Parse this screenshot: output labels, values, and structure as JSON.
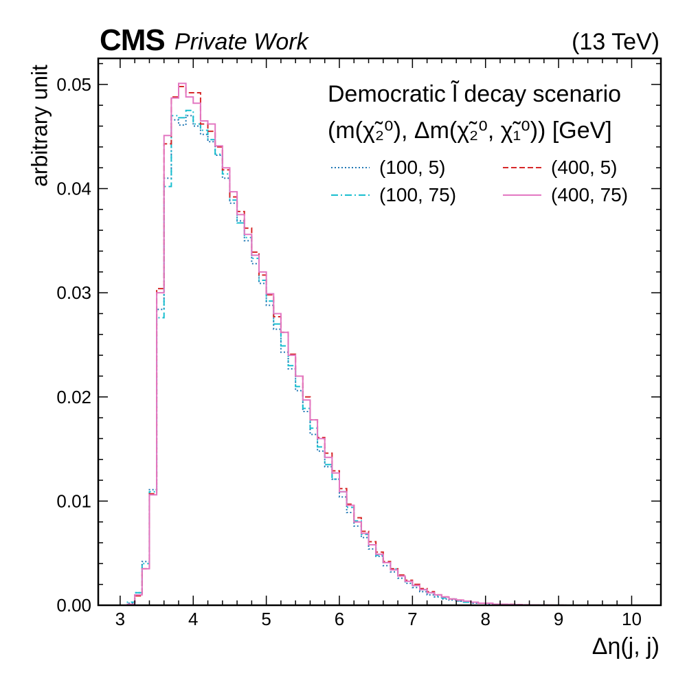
{
  "header": {
    "experiment": "CMS",
    "status": "Private Work",
    "energy": "(13 TeV)"
  },
  "legend": {
    "title_line1": "Democratic l̃ decay scenario",
    "title_line2": "(m(χ̃₂⁰), Δm(χ̃₂⁰, χ̃₁⁰)) [GeV]"
  },
  "chart_data": {
    "type": "line",
    "drawstyle": "step-histogram",
    "xlabel": "Δη(j, j)",
    "ylabel": "arbitrary unit",
    "xlim": [
      2.7,
      10.4
    ],
    "ylim": [
      0,
      0.0525
    ],
    "x_ticks": [
      "3",
      "4",
      "5",
      "6",
      "7",
      "8",
      "9",
      "10"
    ],
    "y_ticks": [
      "0.00",
      "0.01",
      "0.02",
      "0.03",
      "0.04",
      "0.05"
    ],
    "grid": false,
    "legend_placement": "top-right",
    "bin_edges": [
      3.0,
      3.1,
      3.2,
      3.3,
      3.4,
      3.5,
      3.6,
      3.7,
      3.8,
      3.9,
      4.0,
      4.1,
      4.2,
      4.3,
      4.4,
      4.5,
      4.6,
      4.7,
      4.8,
      4.9,
      5.0,
      5.1,
      5.2,
      5.3,
      5.4,
      5.5,
      5.6,
      5.7,
      5.8,
      5.9,
      6.0,
      6.1,
      6.2,
      6.3,
      6.4,
      6.5,
      6.6,
      6.7,
      6.8,
      6.9,
      7.0,
      7.1,
      7.2,
      7.3,
      7.4,
      7.5,
      7.6,
      7.7,
      7.8,
      7.9,
      8.0,
      8.1,
      8.2,
      8.3,
      8.4,
      8.5,
      8.6,
      8.7,
      8.8,
      8.9,
      9.0,
      9.1,
      9.2,
      9.3,
      9.4,
      9.5,
      9.6,
      9.7,
      9.8,
      9.9,
      10.0
    ],
    "series": [
      {
        "name": "(100, 5)",
        "color": "#1f77b4",
        "dash": "dotted",
        "values": [
          0.0,
          0.0002,
          0.0012,
          0.0042,
          0.0111,
          0.0284,
          0.041,
          0.0466,
          0.0461,
          0.047,
          0.046,
          0.0452,
          0.0445,
          0.0432,
          0.041,
          0.0386,
          0.0369,
          0.035,
          0.0328,
          0.0309,
          0.0288,
          0.0265,
          0.0243,
          0.0227,
          0.0206,
          0.0186,
          0.0164,
          0.0148,
          0.0133,
          0.0121,
          0.0104,
          0.0089,
          0.0076,
          0.0065,
          0.0054,
          0.0047,
          0.0038,
          0.0032,
          0.0026,
          0.0021,
          0.0017,
          0.0013,
          0.001,
          0.0008,
          0.0006,
          0.0005,
          0.0004,
          0.0003,
          0.0002,
          0.0002,
          0.0001,
          0.0001,
          8e-05,
          6e-05,
          4e-05,
          3e-05,
          2e-05,
          2e-05,
          1e-05,
          1e-05,
          0.0,
          0.0,
          0.0,
          0.0,
          0.0,
          0.0,
          0.0,
          0.0,
          0.0,
          0.0
        ]
      },
      {
        "name": "(100, 75)",
        "color": "#17becf",
        "dash": "dashdot",
        "values": [
          0.0,
          0.0003,
          0.0012,
          0.004,
          0.0109,
          0.0276,
          0.0402,
          0.047,
          0.0468,
          0.0475,
          0.0462,
          0.0456,
          0.0447,
          0.0433,
          0.0414,
          0.0389,
          0.0367,
          0.0353,
          0.0333,
          0.0312,
          0.0292,
          0.027,
          0.0249,
          0.023,
          0.021,
          0.0189,
          0.017,
          0.0152,
          0.0135,
          0.0121,
          0.0109,
          0.0094,
          0.0081,
          0.0068,
          0.0058,
          0.0048,
          0.0041,
          0.0035,
          0.0028,
          0.0023,
          0.0019,
          0.0015,
          0.0012,
          0.0009,
          0.0007,
          0.0006,
          0.0004,
          0.0003,
          0.0003,
          0.0002,
          0.0002,
          0.0001,
          0.0001,
          8e-05,
          6e-05,
          4e-05,
          3e-05,
          2e-05,
          2e-05,
          1e-05,
          1e-05,
          0.0,
          0.0,
          0.0,
          0.0,
          0.0,
          0.0,
          0.0,
          0.0,
          0.0
        ]
      },
      {
        "name": "(400, 5)",
        "color": "#d62728",
        "dash": "dashed",
        "values": [
          0.0,
          0.0001,
          0.0009,
          0.0035,
          0.0107,
          0.0304,
          0.0443,
          0.0488,
          0.0498,
          0.0492,
          0.0492,
          0.0462,
          0.0455,
          0.044,
          0.0418,
          0.0392,
          0.0378,
          0.0362,
          0.0339,
          0.0317,
          0.0298,
          0.0277,
          0.0262,
          0.0241,
          0.022,
          0.02,
          0.0178,
          0.0161,
          0.0146,
          0.0129,
          0.0112,
          0.0097,
          0.0084,
          0.0071,
          0.0061,
          0.0051,
          0.0042,
          0.0035,
          0.0029,
          0.0024,
          0.002,
          0.0016,
          0.0013,
          0.001,
          0.0008,
          0.0006,
          0.0005,
          0.0004,
          0.0003,
          0.0002,
          0.0002,
          0.0001,
          0.0001,
          8e-05,
          6e-05,
          4e-05,
          3e-05,
          2e-05,
          2e-05,
          1e-05,
          1e-05,
          0.0,
          0.0,
          0.0,
          0.0,
          0.0,
          0.0,
          0.0,
          0.0,
          0.0
        ]
      },
      {
        "name": "(400, 75)",
        "color": "#e377c2",
        "dash": "solid",
        "values": [
          0.0,
          0.0001,
          0.001,
          0.0035,
          0.0106,
          0.03,
          0.0451,
          0.0487,
          0.0501,
          0.0488,
          0.0482,
          0.0465,
          0.0462,
          0.0441,
          0.042,
          0.0397,
          0.0375,
          0.0356,
          0.0336,
          0.032,
          0.0299,
          0.028,
          0.0262,
          0.024,
          0.022,
          0.0197,
          0.0178,
          0.016,
          0.0142,
          0.0127,
          0.0109,
          0.0096,
          0.008,
          0.0069,
          0.0058,
          0.0049,
          0.0041,
          0.0034,
          0.0028,
          0.0023,
          0.0019,
          0.0015,
          0.0012,
          0.001,
          0.0008,
          0.0006,
          0.0005,
          0.0004,
          0.0003,
          0.0002,
          0.0002,
          0.0001,
          0.0001,
          8e-05,
          6e-05,
          4e-05,
          3e-05,
          2e-05,
          2e-05,
          1e-05,
          1e-05,
          0.0,
          0.0,
          0.0,
          0.0,
          0.0,
          0.0,
          0.0,
          0.0,
          0.0
        ]
      }
    ]
  }
}
